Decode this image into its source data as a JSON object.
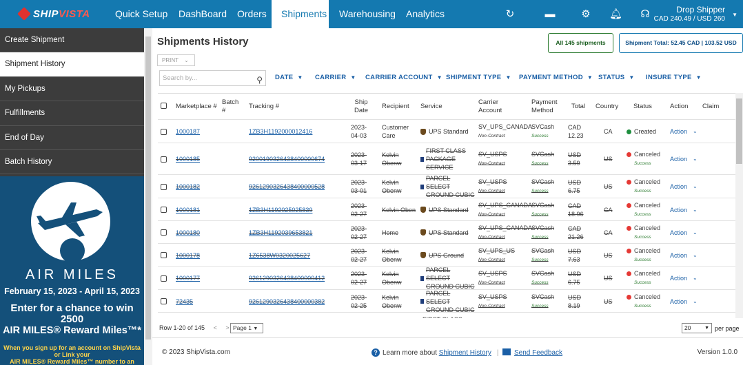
{
  "brand": {
    "part1": "SHIP",
    "part2": "VISTA"
  },
  "nav": {
    "items": [
      "Quick Setup",
      "DashBoard",
      "Orders",
      "Shipments",
      "Warehousing",
      "Analytics"
    ],
    "user_name": "Drop Shipper",
    "user_balance": "CAD 240.49 / USD 260"
  },
  "sidebar": {
    "items": [
      "Create Shipment",
      "Shipment History",
      "My Pickups",
      "Fulfillments",
      "End of Day",
      "Batch History"
    ]
  },
  "ad": {
    "brand": "AIR MILES",
    "dates": "February 15, 2023 - April 15, 2023",
    "line1": "Enter for a chance to win 2500",
    "line2": "AIR MILES® Reward Miles™*",
    "fine1": "When you sign up for an account on ShipVista or Link your",
    "fine2": "AIR MILES® Reward Miles™ number to an"
  },
  "page": {
    "title": "Shipments History",
    "print": "PRINT",
    "all_shipments": "All 145 shipments",
    "total": "Shipment Total: 52.45 CAD | 103.52 USD",
    "search_placeholder": "Search by..."
  },
  "filters": [
    "DATE",
    "CARRIER",
    "CARRIER ACCOUNT",
    "SHIPMENT TYPE",
    "PAYMENT METHOD",
    "STATUS",
    "INSURE TYPE"
  ],
  "columns": {
    "marketplace": "Marketplace #",
    "batch": "Batch #",
    "tracking": "Tracking #",
    "ship_date": "Ship Date",
    "recipient": "Recipient",
    "service": "Service",
    "carrier_account": "Carrier Account",
    "payment": "Payment Method",
    "total": "Total",
    "country": "Country",
    "status": "Status",
    "action": "Action",
    "claim": "Claim"
  },
  "rows": [
    {
      "mp": "1000187",
      "track": "1ZB3H1192000012416",
      "d1": "2023-",
      "d2": "04-03",
      "rec": "Customer Care",
      "svc": "UPS Standard",
      "carrier": "ups",
      "acct": "SV_UPS_CANADA",
      "acct_sub": "Non-Contract",
      "pay": "SVCash",
      "pay_sub": "Success",
      "cur": "CAD",
      "amt": "12.23",
      "ctry": "CA",
      "status": "Created",
      "status_sub": "",
      "action": "Action",
      "canceled": false
    },
    {
      "mp": "1000185",
      "track": "92001903264384000006​74",
      "d1": "2023-",
      "d2": "03-17",
      "rec": "Kelvin Obenw",
      "svc": "FIRST CLASS PACKAGE SERVICE",
      "carrier": "usps",
      "acct": "SV_USPS",
      "acct_sub": "Non-Contract",
      "pay": "SVCash",
      "pay_sub": "Success",
      "cur": "USD",
      "amt": "3.59",
      "ctry": "US",
      "status": "Canceled",
      "status_sub": "Success",
      "action": "Action",
      "canceled": true
    },
    {
      "mp": "1000182",
      "track": "92612903264384000005​28",
      "d1": "2023-",
      "d2": "03-01",
      "rec": "Kelvin Obenw",
      "svc": "PARCEL SELECT GROUND CUBIC",
      "carrier": "usps",
      "acct": "SV_USPS",
      "acct_sub": "Non-Contract",
      "pay": "SVCash",
      "pay_sub": "Success",
      "cur": "USD",
      "amt": "6.75",
      "ctry": "US",
      "status": "Canceled",
      "status_sub": "Success",
      "action": "Action",
      "canceled": true
    },
    {
      "mp": "1000181",
      "track": "1ZB3H1192025025839",
      "d1": "2023-",
      "d2": "02-27",
      "rec": "Kelvin Oben",
      "svc": "UPS Standard",
      "carrier": "ups",
      "acct": "SV_UPS_CANADA",
      "acct_sub": "Non-Contract",
      "pay": "SVCash",
      "pay_sub": "Success",
      "cur": "CAD",
      "amt": "18.96",
      "ctry": "CA",
      "status": "Canceled",
      "status_sub": "Success",
      "action": "Action",
      "canceled": true
    },
    {
      "mp": "1000180",
      "track": "1ZB3H1192039653821",
      "d1": "2023-",
      "d2": "02-27",
      "rec": "Home",
      "svc": "UPS Standard",
      "carrier": "ups",
      "acct": "SV_UPS_CANADA",
      "acct_sub": "Non-Contract",
      "pay": "SVCash",
      "pay_sub": "Success",
      "cur": "CAD",
      "amt": "21.26",
      "ctry": "CA",
      "status": "Canceled",
      "status_sub": "Success",
      "action": "Action",
      "canceled": true
    },
    {
      "mp": "1000178",
      "track": "1Z6538W0320025627",
      "d1": "2023-",
      "d2": "02-27",
      "rec": "Kelvin Obenw",
      "svc": "UPS Ground",
      "carrier": "ups",
      "acct": "SV_UPS_US",
      "acct_sub": "Non-Contract",
      "pay": "SVCash",
      "pay_sub": "Success",
      "cur": "USD",
      "amt": "7.63",
      "ctry": "US",
      "status": "Canceled",
      "status_sub": "Success",
      "action": "Action",
      "canceled": true
    },
    {
      "mp": "1000177",
      "track": "92612903264384000004​12",
      "d1": "2023-",
      "d2": "02-27",
      "rec": "Kelvin Obenw",
      "svc": "PARCEL SELECT GROUND CUBIC",
      "carrier": "usps",
      "acct": "SV_USPS",
      "acct_sub": "Non-Contract",
      "pay": "SVCash",
      "pay_sub": "Success",
      "cur": "USD",
      "amt": "6.75",
      "ctry": "US",
      "status": "Canceled",
      "status_sub": "Success",
      "action": "Action",
      "canceled": true
    },
    {
      "mp": "72435",
      "track": "92612903264384000003​82",
      "d1": "2023-",
      "d2": "02-25",
      "rec": "Kelvin Obenw",
      "svc": "PARCEL SELECT GROUND CUBIC",
      "carrier": "usps",
      "acct": "SV_USPS",
      "acct_sub": "Non-Contract",
      "pay": "SVCash",
      "pay_sub": "Success",
      "cur": "USD",
      "amt": "8.19",
      "ctry": "US",
      "status": "Canceled",
      "status_sub": "Success",
      "action": "Action",
      "canceled": true
    },
    {
      "mp": "",
      "track": "",
      "d1": "",
      "d2": "",
      "rec": "",
      "svc": "FIRST CLASS",
      "carrier": "",
      "acct": "",
      "acct_sub": "",
      "pay": "",
      "pay_sub": "",
      "cur": "",
      "amt": "",
      "ctry": "",
      "status": "",
      "status_sub": "",
      "action": "",
      "canceled": true
    }
  ],
  "pager": {
    "range": "Row 1-20 of 145",
    "page": "Page 1",
    "per_page": "20",
    "per_page_label": "per page"
  },
  "footer": {
    "copyright": "© 2023 ShipVista.com",
    "learn": "Learn more about",
    "learn_link": "Shipment History",
    "feedback": "Send Feedback",
    "version": "Version 1.0.0"
  }
}
